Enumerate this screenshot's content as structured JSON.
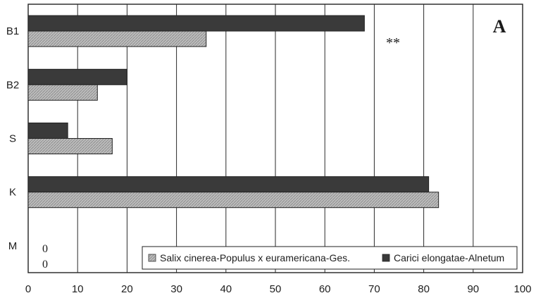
{
  "chart_data": {
    "type": "bar",
    "orientation": "horizontal",
    "categories": [
      "B1",
      "B2",
      "S",
      "K",
      "M"
    ],
    "series": [
      {
        "name": "Carici elongatae-Alnetum",
        "values": [
          68,
          20,
          8,
          81,
          0
        ],
        "color": "#3a3a3a"
      },
      {
        "name": "Salix cinerea-Populus x euramericana-Ges.",
        "values": [
          36,
          14,
          17,
          83,
          0
        ],
        "color": "#b9b9b9"
      }
    ],
    "xlim": [
      0,
      100
    ],
    "xticks": [
      "0",
      "10",
      "20",
      "30",
      "40",
      "50",
      "60",
      "70",
      "80",
      "90",
      "100"
    ],
    "grid": "vertical",
    "legend_position": "bottom-right",
    "legend_order": [
      1,
      0
    ],
    "panel_label": "A",
    "annotation": "**",
    "zero_labels": [
      "0",
      "0"
    ]
  }
}
